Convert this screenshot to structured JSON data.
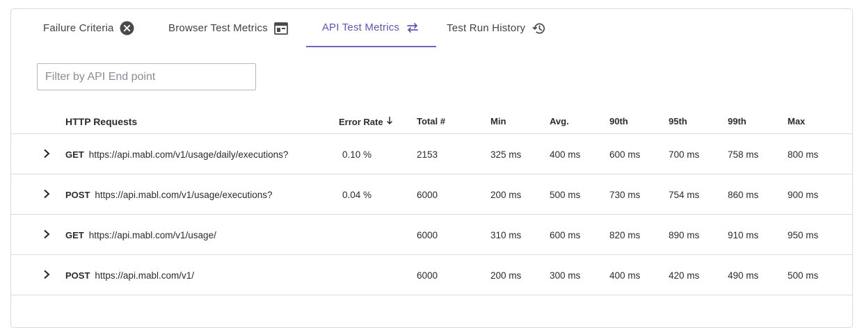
{
  "tabs": [
    {
      "label": "Failure Criteria",
      "icon": "close-circle-icon"
    },
    {
      "label": "Browser Test Metrics",
      "icon": "browser-window-icon"
    },
    {
      "label": "API Test Metrics",
      "icon": "swap-arrows-icon",
      "active": true
    },
    {
      "label": "Test Run History",
      "icon": "history-icon"
    }
  ],
  "filter": {
    "placeholder": "Filter by API End point",
    "value": ""
  },
  "table": {
    "headers": {
      "http_requests": "HTTP Requests",
      "error_rate": "Error Rate",
      "total": "Total #",
      "min": "Min",
      "avg": "Avg.",
      "p90": "90th",
      "p95": "95th",
      "p99": "99th",
      "max": "Max"
    },
    "sort": {
      "column": "error_rate",
      "direction": "desc",
      "icon": "arrow-down-icon"
    },
    "rows": [
      {
        "method": "GET",
        "url": "https://api.mabl.com/v1/usage/daily/executions?",
        "error_rate": "0.10 %",
        "total": "2153",
        "min": "325 ms",
        "avg": "400 ms",
        "p90": "600 ms",
        "p95": "700 ms",
        "p99": "758 ms",
        "max": "800 ms"
      },
      {
        "method": "POST",
        "url": "https://api.mabl.com/v1/usage/executions?",
        "error_rate": "0.04 %",
        "total": "6000",
        "min": "200 ms",
        "avg": "500 ms",
        "p90": "730 ms",
        "p95": "754 ms",
        "p99": "860 ms",
        "max": "900 ms"
      },
      {
        "method": "GET",
        "url": "https://api.mabl.com/v1/usage/",
        "error_rate": "",
        "total": "6000",
        "min": "310 ms",
        "avg": "600 ms",
        "p90": "820 ms",
        "p95": "890 ms",
        "p99": "910 ms",
        "max": "950 ms"
      },
      {
        "method": "POST",
        "url": "https://api.mabl.com/v1/",
        "error_rate": "",
        "total": "6000",
        "min": "200 ms",
        "avg": "300 ms",
        "p90": "400 ms",
        "p95": "420 ms",
        "p99": "490 ms",
        "max": "500 ms"
      }
    ]
  },
  "colors": {
    "accent": "#5b56c8",
    "border": "#d9d9e3",
    "text": "#212121"
  }
}
